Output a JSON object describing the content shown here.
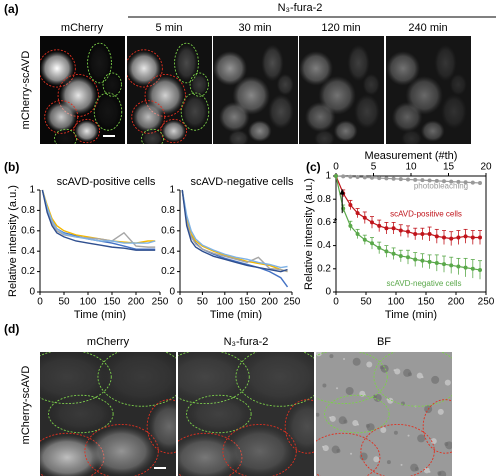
{
  "panel_labels": [
    "(a)",
    "(b)",
    "(c)",
    "(d)"
  ],
  "panel_a": {
    "row_label": "mCherry-scAVD",
    "group_label": "N₃-fura-2",
    "columns": [
      "mCherry",
      "5 min",
      "30 min",
      "120 min",
      "240 min"
    ]
  },
  "panel_d": {
    "row_label": "mCherry-scAVD",
    "columns": [
      "mCherry",
      "N₃-fura-2",
      "BF"
    ]
  },
  "chart_data": [
    {
      "type": "line",
      "title": "scAVD-positive cells",
      "x_label": "Time (min)",
      "y_label": "Relative intensity (a.u.)",
      "x": [
        5,
        15,
        25,
        35,
        50,
        75,
        100,
        125,
        150,
        175,
        200,
        225,
        240
      ],
      "series": [
        {
          "color": "#4472c4",
          "values": [
            1,
            0.82,
            0.7,
            0.62,
            0.58,
            0.55,
            0.52,
            0.5,
            0.48,
            0.45,
            0.42,
            0.42,
            0.42
          ]
        },
        {
          "color": "#f5b800",
          "values": [
            1,
            0.85,
            0.72,
            0.65,
            0.6,
            0.56,
            0.54,
            0.52,
            0.5,
            0.49,
            0.48,
            0.5,
            0.5
          ]
        },
        {
          "color": "#a6a6a6",
          "values": [
            1,
            0.8,
            0.68,
            0.6,
            0.56,
            0.54,
            0.53,
            0.52,
            0.5,
            0.58,
            0.45,
            0.44,
            0.44
          ]
        },
        {
          "color": "#7fb2e5",
          "values": [
            1,
            0.83,
            0.7,
            0.62,
            0.57,
            0.54,
            0.52,
            0.5,
            0.5,
            0.48,
            0.48,
            0.48,
            0.5
          ]
        },
        {
          "color": "#2f4f8f",
          "values": [
            1,
            0.78,
            0.65,
            0.58,
            0.54,
            0.5,
            0.48,
            0.46,
            0.44,
            0.43,
            0.41,
            0.41,
            0.41
          ]
        }
      ],
      "xlim": [
        0,
        250
      ],
      "xticks": [
        0,
        50,
        100,
        150,
        200,
        250
      ],
      "ylim": [
        0,
        1
      ],
      "yticks": [
        0,
        0.2,
        0.4,
        0.6,
        0.8,
        1
      ]
    },
    {
      "type": "line",
      "title": "scAVD-negative cells",
      "x_label": "Time (min)",
      "x": [
        5,
        15,
        25,
        35,
        50,
        75,
        100,
        125,
        150,
        175,
        200,
        225,
        240
      ],
      "series": [
        {
          "color": "#4472c4",
          "values": [
            1,
            0.7,
            0.55,
            0.48,
            0.42,
            0.37,
            0.33,
            0.3,
            0.27,
            0.24,
            0.2,
            0.14,
            0.05
          ]
        },
        {
          "color": "#f5b800",
          "values": [
            1,
            0.72,
            0.57,
            0.5,
            0.45,
            0.4,
            0.36,
            0.33,
            0.3,
            0.28,
            0.26,
            0.22,
            0.2
          ]
        },
        {
          "color": "#a6a6a6",
          "values": [
            1,
            0.68,
            0.54,
            0.47,
            0.42,
            0.38,
            0.35,
            0.32,
            0.29,
            0.34,
            0.23,
            0.22,
            0.2
          ]
        },
        {
          "color": "#7fb2e5",
          "values": [
            1,
            0.75,
            0.6,
            0.52,
            0.46,
            0.41,
            0.37,
            0.34,
            0.32,
            0.29,
            0.27,
            0.24,
            0.25
          ]
        },
        {
          "color": "#2f4f8f",
          "values": [
            1,
            0.65,
            0.5,
            0.44,
            0.4,
            0.35,
            0.32,
            0.29,
            0.26,
            0.24,
            0.22,
            0.2,
            0.22
          ]
        }
      ],
      "xlim": [
        0,
        250
      ],
      "xticks": [
        0,
        50,
        100,
        150,
        200,
        250
      ],
      "ylim": [
        0,
        1
      ],
      "yticks": [
        0,
        0.2,
        0.4,
        0.6,
        0.8,
        1
      ]
    },
    {
      "type": "errorline",
      "x_label": "Time (min)",
      "y_label": "Relative intensity (a.u.)",
      "x2_label": "Measurement (#th)",
      "x": [
        0,
        12,
        24,
        36,
        48,
        60,
        72,
        84,
        96,
        108,
        120,
        132,
        144,
        156,
        168,
        180,
        192,
        204,
        216,
        228,
        240
      ],
      "series": [
        {
          "color": "#999999",
          "values": [
            1,
            0.997,
            0.994,
            0.991,
            0.988,
            0.985,
            0.982,
            0.979,
            0.976,
            0.973,
            0.97,
            0.967,
            0.964,
            0.961,
            0.958,
            0.955,
            0.952,
            0.949,
            0.946,
            0.943,
            0.94
          ]
        },
        {
          "color": "#c0141b",
          "values": [
            1,
            0.85,
            0.75,
            0.68,
            0.64,
            0.6,
            0.57,
            0.55,
            0.55,
            0.53,
            0.52,
            0.5,
            0.5,
            0.5,
            0.48,
            0.47,
            0.46,
            0.47,
            0.48,
            0.47,
            0.47
          ],
          "errors": [
            0,
            0.03,
            0.04,
            0.04,
            0.05,
            0.05,
            0.05,
            0.05,
            0.05,
            0.05,
            0.05,
            0.05,
            0.05,
            0.06,
            0.06,
            0.06,
            0.06,
            0.06,
            0.06,
            0.06,
            0.06
          ]
        },
        {
          "color": "#5aa84a",
          "values": [
            1,
            0.72,
            0.57,
            0.5,
            0.45,
            0.42,
            0.38,
            0.35,
            0.33,
            0.31,
            0.3,
            0.28,
            0.27,
            0.26,
            0.25,
            0.24,
            0.23,
            0.22,
            0.21,
            0.2,
            0.19
          ],
          "errors": [
            0,
            0.03,
            0.04,
            0.04,
            0.04,
            0.05,
            0.05,
            0.05,
            0.05,
            0.05,
            0.06,
            0.06,
            0.06,
            0.06,
            0.07,
            0.07,
            0.07,
            0.07,
            0.08,
            0.08,
            0.08
          ]
        }
      ],
      "annotations": [
        "photobleaching",
        "scAVD-positive cells",
        "scAVD-negative cells",
        "*"
      ],
      "xlim": [
        0,
        250
      ],
      "xticks": [
        0,
        50,
        100,
        150,
        200,
        250
      ],
      "ylim": [
        0,
        1
      ],
      "yticks": [
        0,
        0.2,
        0.4,
        0.6,
        0.8,
        1
      ],
      "x2lim": [
        0,
        20
      ],
      "x2ticks": [
        0,
        5,
        10,
        15,
        20
      ]
    }
  ]
}
